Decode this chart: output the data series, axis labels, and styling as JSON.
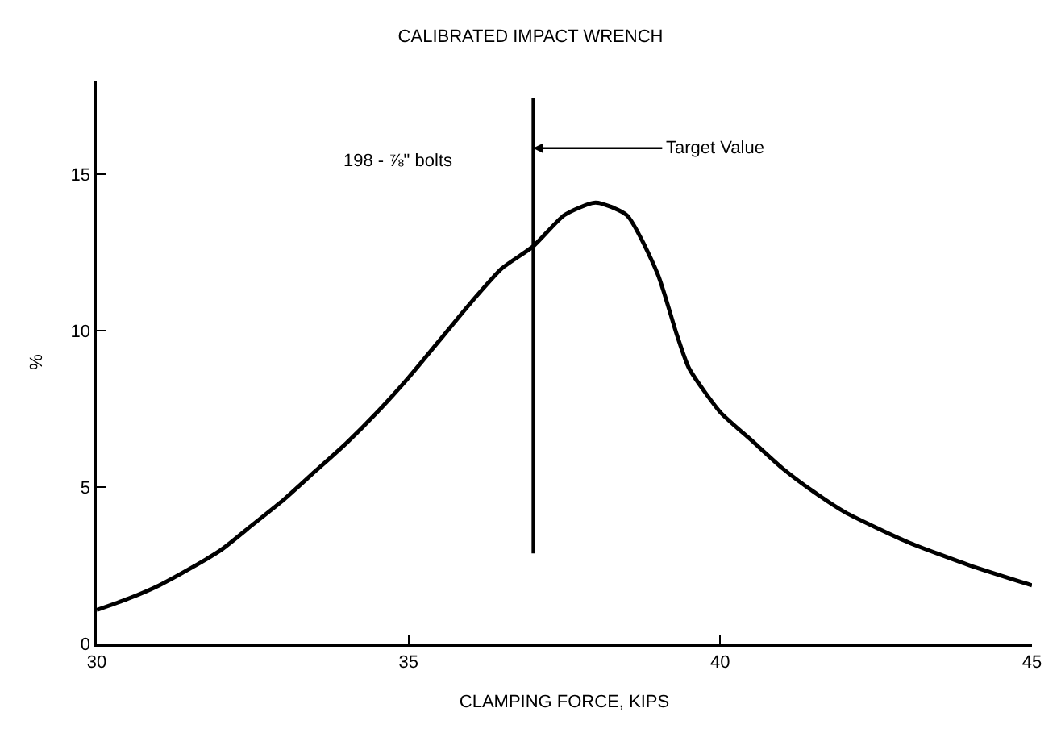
{
  "chart_data": {
    "type": "line",
    "title": "CALIBRATED IMPACT WRENCH",
    "xlabel": "CLAMPING FORCE, KIPS",
    "ylabel": "%",
    "x": [
      30,
      30.5,
      31,
      31.5,
      32,
      32.5,
      33,
      33.5,
      34,
      34.5,
      35,
      35.5,
      36,
      36.5,
      37,
      37.5,
      38,
      38.5,
      39,
      39.3,
      39.5,
      40,
      40.5,
      41,
      41.5,
      42,
      43,
      44,
      45
    ],
    "series": [
      {
        "color": "#000000",
        "values": [
          1.07,
          1.43,
          1.86,
          2.4,
          3.0,
          3.8,
          4.6,
          5.5,
          6.4,
          7.4,
          8.5,
          9.7,
          10.9,
          12.0,
          12.7,
          13.7,
          14.1,
          13.7,
          11.8,
          9.9,
          8.8,
          7.4,
          6.5,
          5.6,
          4.85,
          4.2,
          3.25,
          2.5,
          1.86
        ]
      }
    ],
    "xlim": [
      30,
      45
    ],
    "ylim": [
      0,
      18
    ],
    "xticks": [
      30,
      35,
      40,
      45
    ],
    "yticks": [
      0,
      5,
      10,
      15
    ],
    "ref_lines": [
      {
        "axis": "x",
        "value": 37,
        "label": "Target Value",
        "color": "#000000"
      }
    ],
    "annotations": [
      "198 - ⅞\" bolts"
    ],
    "marker": "none",
    "line_style": "solid"
  }
}
